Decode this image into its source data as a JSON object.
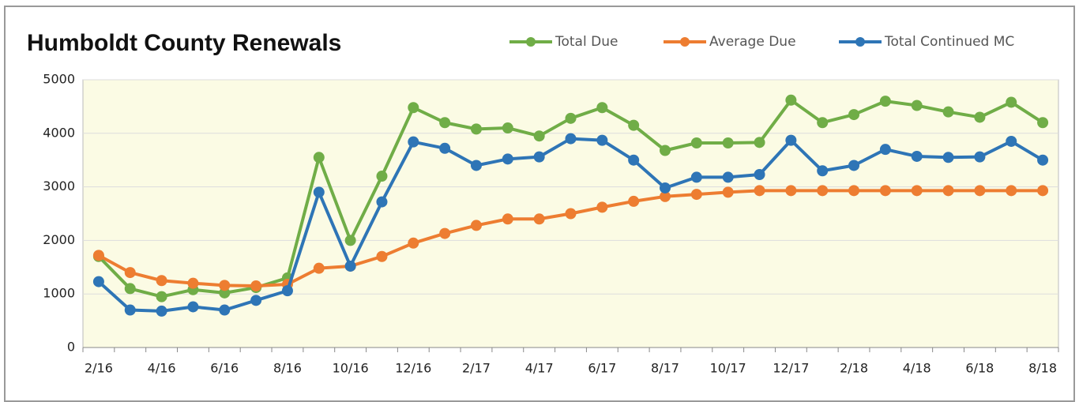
{
  "chart_data": {
    "type": "line",
    "title": "Humboldt County Renewals",
    "categories": [
      "2/16",
      null,
      "4/16",
      null,
      "6/16",
      null,
      "8/16",
      null,
      "10/16",
      null,
      "12/16",
      null,
      "2/17",
      null,
      "4/17",
      null,
      "6/17",
      null,
      "8/17",
      null,
      "10/17",
      null,
      "12/17",
      null,
      "2/18",
      null,
      "4/18",
      null,
      "6/18",
      null,
      "8/18"
    ],
    "series": [
      {
        "name": "Total Due",
        "color": "#70ad47",
        "values": [
          1700,
          1100,
          950,
          1080,
          1020,
          1120,
          1300,
          3550,
          2000,
          3200,
          4480,
          4200,
          4080,
          4100,
          3950,
          4280,
          4480,
          4150,
          3680,
          3820,
          3820,
          3830,
          4620,
          4200,
          4350,
          4600,
          4520,
          4400,
          4300,
          4580,
          4200
        ]
      },
      {
        "name": "Average Due",
        "color": "#ed7d31",
        "values": [
          1720,
          1400,
          1250,
          1200,
          1160,
          1150,
          1180,
          1480,
          1520,
          1700,
          1950,
          2130,
          2280,
          2400,
          2400,
          2500,
          2620,
          2730,
          2820,
          2860,
          2900,
          2930,
          2930,
          2930,
          2930,
          2930,
          2930,
          2930,
          2930,
          2930,
          2930
        ]
      },
      {
        "name": "Total Continued MC",
        "color": "#2e75b6",
        "values": [
          1230,
          700,
          680,
          760,
          700,
          880,
          1060,
          2900,
          1520,
          2720,
          3840,
          3720,
          3400,
          3520,
          3560,
          3900,
          3870,
          3500,
          2980,
          3180,
          3180,
          3230,
          3870,
          3300,
          3400,
          3700,
          3570,
          3550,
          3560,
          3850,
          3500
        ]
      }
    ],
    "ylim": [
      0,
      5000
    ],
    "yticks": [
      0,
      1000,
      2000,
      3000,
      4000,
      5000
    ],
    "grid": true
  }
}
